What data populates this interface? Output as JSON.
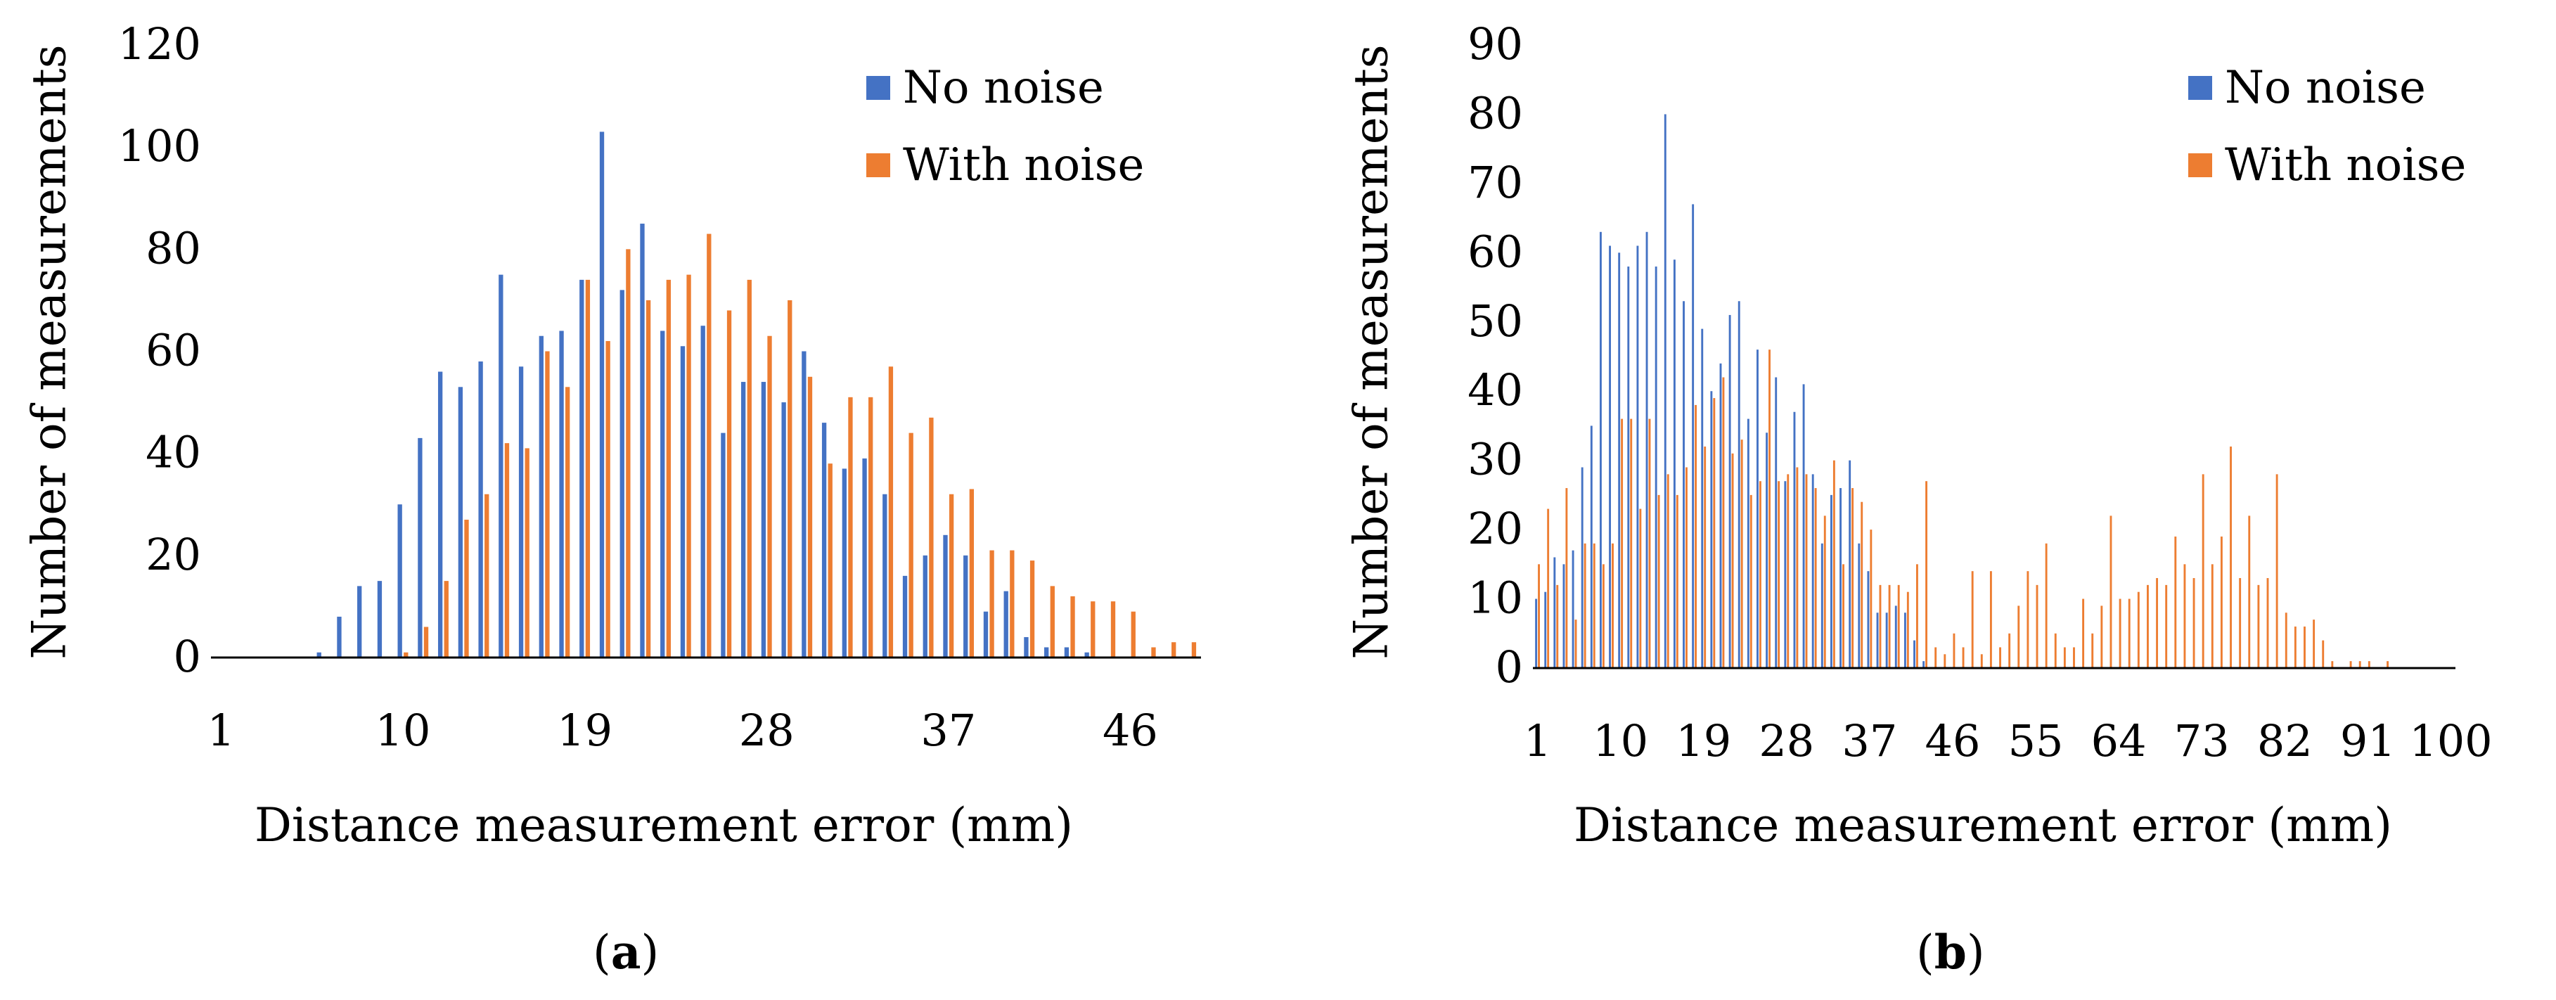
{
  "chart_data": [
    {
      "type": "bar",
      "panel": "a",
      "caption_open": "(",
      "caption_letter": "a",
      "caption_close": ")",
      "title": "",
      "xlabel": "Distance measurement error (mm)",
      "ylabel": "Number of measurements",
      "ylim": [
        0,
        120
      ],
      "yticks": [
        0,
        20,
        40,
        60,
        80,
        100,
        120
      ],
      "xticks": [
        1,
        10,
        19,
        28,
        37,
        46
      ],
      "categories": [
        1,
        2,
        3,
        4,
        5,
        6,
        7,
        8,
        9,
        10,
        11,
        12,
        13,
        14,
        15,
        16,
        17,
        18,
        19,
        20,
        21,
        22,
        23,
        24,
        25,
        26,
        27,
        28,
        29,
        30,
        31,
        32,
        33,
        34,
        35,
        36,
        37,
        38,
        39,
        40,
        41,
        42,
        43,
        44,
        45,
        46,
        47,
        48,
        49
      ],
      "legend_position": "top-right",
      "series": [
        {
          "name": "No noise",
          "color": "#4472C4",
          "values": [
            0,
            0,
            0,
            0,
            0,
            1,
            8,
            14,
            15,
            30,
            43,
            56,
            53,
            58,
            75,
            57,
            63,
            64,
            74,
            103,
            72,
            85,
            64,
            61,
            65,
            44,
            54,
            54,
            50,
            60,
            46,
            37,
            39,
            32,
            16,
            20,
            24,
            20,
            9,
            13,
            4,
            2,
            2,
            1,
            0,
            0,
            0,
            0,
            0
          ]
        },
        {
          "name": "With noise",
          "color": "#ED7D31",
          "values": [
            0,
            0,
            0,
            0,
            0,
            0,
            0,
            0,
            0,
            1,
            6,
            15,
            27,
            32,
            42,
            41,
            60,
            53,
            74,
            62,
            80,
            70,
            74,
            75,
            83,
            68,
            74,
            63,
            70,
            55,
            38,
            51,
            51,
            57,
            44,
            47,
            32,
            33,
            21,
            21,
            19,
            14,
            12,
            11,
            11,
            9,
            2,
            3,
            3
          ]
        }
      ]
    },
    {
      "type": "bar",
      "panel": "b",
      "caption_open": "(",
      "caption_letter": "b",
      "caption_close": ")",
      "title": "",
      "xlabel": "Distance measurement error (mm)",
      "ylabel": "Number of measurements",
      "ylim": [
        0,
        90
      ],
      "yticks": [
        0,
        10,
        20,
        30,
        40,
        50,
        60,
        70,
        80,
        90
      ],
      "xticks": [
        1,
        10,
        19,
        28,
        37,
        46,
        55,
        64,
        73,
        82,
        91,
        100
      ],
      "categories_range": [
        1,
        100
      ],
      "legend_position": "top-right",
      "series": [
        {
          "name": "No noise",
          "color": "#4472C4",
          "values": [
            10,
            11,
            16,
            15,
            17,
            29,
            35,
            63,
            61,
            60,
            58,
            61,
            63,
            58,
            80,
            59,
            53,
            67,
            49,
            40,
            44,
            51,
            53,
            36,
            46,
            34,
            42,
            27,
            37,
            41,
            28,
            18,
            25,
            26,
            30,
            18,
            14,
            8,
            8,
            9,
            8,
            4,
            1,
            0,
            0,
            0,
            0,
            0,
            0,
            0,
            0,
            0,
            0,
            0,
            0,
            0,
            0,
            0,
            0,
            0,
            0,
            0,
            0,
            0,
            0,
            0,
            0,
            0,
            0,
            0,
            0,
            0,
            0,
            0,
            0,
            0,
            0,
            0,
            0,
            0,
            0,
            0,
            0,
            0,
            0,
            0,
            0,
            0,
            0,
            0,
            0,
            0,
            0,
            0,
            0,
            0,
            0,
            0,
            0,
            0
          ]
        },
        {
          "name": "With noise",
          "color": "#ED7D31",
          "values": [
            15,
            23,
            12,
            26,
            7,
            18,
            18,
            15,
            18,
            36,
            36,
            23,
            36,
            25,
            28,
            25,
            29,
            38,
            32,
            39,
            42,
            31,
            33,
            25,
            27,
            46,
            27,
            28,
            29,
            28,
            26,
            22,
            30,
            15,
            26,
            24,
            20,
            12,
            12,
            12,
            11,
            15,
            27,
            3,
            2,
            5,
            3,
            14,
            2,
            14,
            3,
            5,
            9,
            14,
            12,
            18,
            5,
            3,
            3,
            10,
            5,
            9,
            22,
            10,
            10,
            11,
            12,
            13,
            12,
            19,
            15,
            13,
            28,
            15,
            19,
            32,
            13,
            22,
            12,
            13,
            28,
            8,
            6,
            6,
            7,
            4,
            1,
            0,
            1,
            1,
            1,
            0,
            1,
            0,
            0,
            0,
            0,
            0,
            0,
            0
          ]
        }
      ]
    }
  ]
}
